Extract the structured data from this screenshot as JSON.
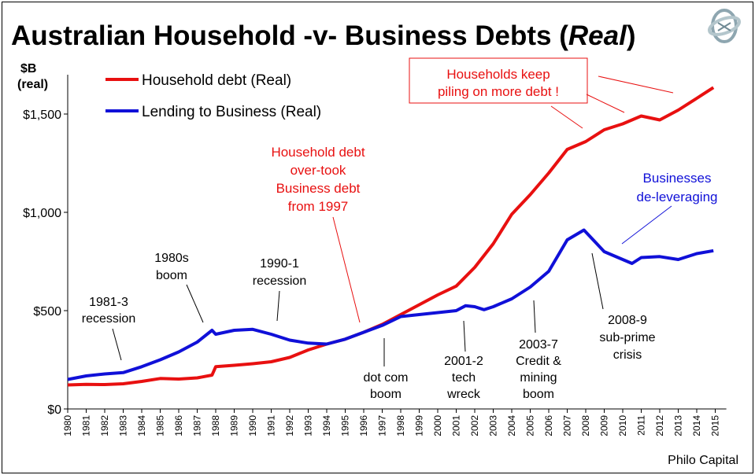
{
  "chart_data": {
    "type": "line",
    "title": "Australian Household -v- Business Debts (",
    "title_italic": "Real",
    "title_end": ")",
    "ylabel_line1": "$B",
    "ylabel_line2": "(real)",
    "xlabel": "",
    "ylim": [
      0,
      1700
    ],
    "xlim": [
      1980,
      2015.6
    ],
    "yticks": [
      0,
      500,
      1000,
      1500
    ],
    "ytick_labels": [
      "$0",
      "$500",
      "$1,000",
      "$1,500"
    ],
    "xtick_labels": [
      "1980",
      "1981",
      "1982",
      "1983",
      "1984",
      "1985",
      "1986",
      "1987",
      "1988",
      "1989",
      "1990",
      "1991",
      "1992",
      "1993",
      "1994",
      "1995",
      "1996",
      "1997",
      "1998",
      "1999",
      "2000",
      "2001",
      "2002",
      "2003",
      "2004",
      "2005",
      "2006",
      "2007",
      "2008",
      "2009",
      "2010",
      "2011",
      "2012",
      "2013",
      "2014",
      "2015"
    ],
    "grid": false,
    "legend_position": "top-left",
    "series": [
      {
        "name": "Household debt (Real)",
        "color": "#e81010",
        "x": [
          1980,
          1981,
          1982,
          1983,
          1984,
          1985,
          1986,
          1987,
          1987.8,
          1988,
          1989,
          1990,
          1991,
          1992,
          1993,
          1994,
          1995,
          1996,
          1997,
          1998,
          1999,
          2000,
          2001,
          2002,
          2003,
          2004,
          2005,
          2006,
          2007,
          2008,
          2009,
          2010,
          2011,
          2012,
          2013,
          2014,
          2014.9
        ],
        "y": [
          122,
          125,
          124,
          128,
          140,
          155,
          152,
          158,
          172,
          215,
          222,
          230,
          240,
          262,
          300,
          330,
          355,
          390,
          430,
          480,
          530,
          580,
          625,
          720,
          840,
          990,
          1090,
          1200,
          1320,
          1360,
          1420,
          1450,
          1490,
          1470,
          1520,
          1580,
          1635
        ]
      },
      {
        "name": "Lending to Business (Real)",
        "color": "#1010d8",
        "x": [
          1980,
          1981,
          1982,
          1983,
          1984,
          1985,
          1986,
          1987,
          1987.8,
          1988,
          1989,
          1990,
          1991,
          1992,
          1993,
          1994,
          1995,
          1996,
          1997,
          1998,
          1999,
          2000,
          2001,
          2001.5,
          2002,
          2002.5,
          2003,
          2004,
          2005,
          2006,
          2007,
          2007.9,
          2008.5,
          2009,
          2010,
          2010.5,
          2011,
          2012,
          2013,
          2014,
          2014.9
        ],
        "y": [
          150,
          168,
          178,
          185,
          215,
          250,
          290,
          340,
          400,
          380,
          400,
          405,
          380,
          350,
          335,
          330,
          355,
          390,
          425,
          470,
          480,
          490,
          500,
          525,
          520,
          505,
          520,
          560,
          620,
          700,
          860,
          910,
          850,
          800,
          760,
          740,
          770,
          775,
          760,
          790,
          805
        ]
      }
    ],
    "annotations": {
      "households_keep": [
        "Households keep",
        "piling on more debt !"
      ],
      "overtook": [
        "Household debt",
        "over-took",
        "Business debt",
        "from 1997"
      ],
      "businesses": [
        "Businesses",
        "de-leveraging"
      ],
      "r1981": [
        "1981-3",
        "recession"
      ],
      "b1980s": [
        "1980s",
        "boom"
      ],
      "r1990": [
        "1990-1",
        "recession"
      ],
      "dotcom": [
        "dot com",
        "boom"
      ],
      "tech": [
        "2001-2",
        "tech",
        "wreck"
      ],
      "credit": [
        "2003-7",
        "Credit &",
        "mining",
        "boom"
      ],
      "subprime": [
        "2008-9",
        "sub-prime",
        "crisis"
      ]
    },
    "source": "Philo Capital"
  }
}
